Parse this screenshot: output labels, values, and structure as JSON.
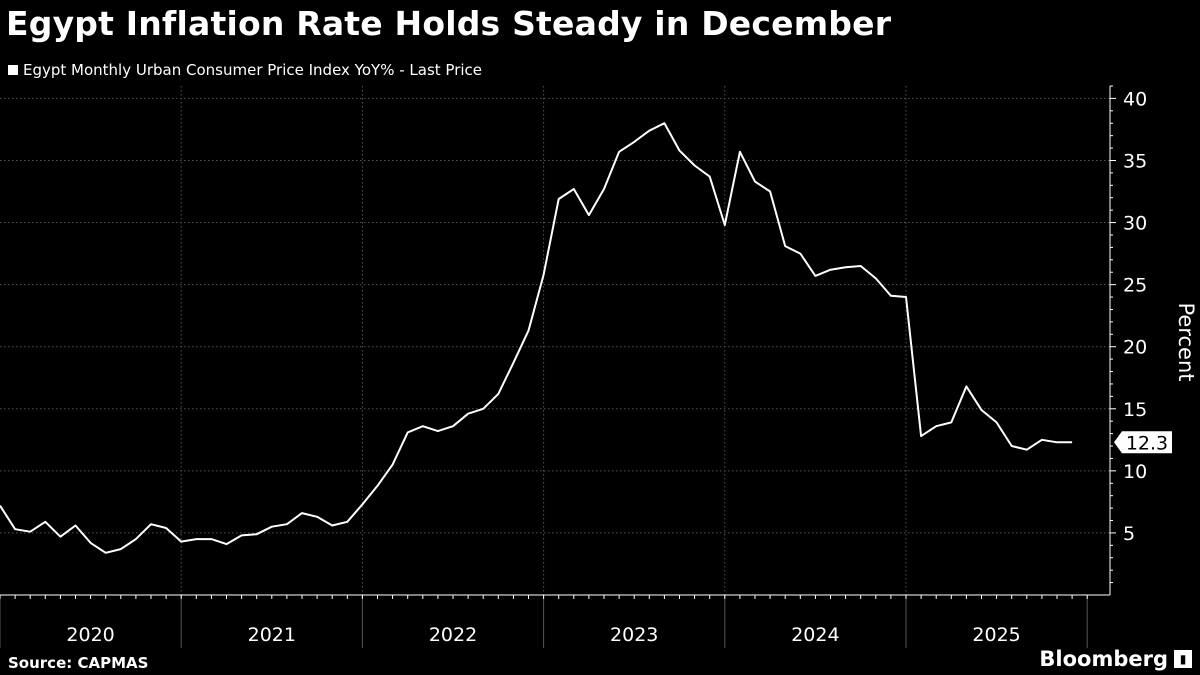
{
  "header": {
    "title": "Egypt Inflation Rate Holds Steady in December",
    "legend_label": "Egypt Monthly Urban Consumer Price Index YoY% - Last Price"
  },
  "footer": {
    "source": "Source: CAPMAS",
    "brand": "Bloomberg",
    "brand_icon": "bloomberg-logo-icon"
  },
  "colors": {
    "background": "#000000",
    "line": "#ffffff",
    "grid": "#555555"
  },
  "chart_data": {
    "type": "line",
    "title": "Egypt Inflation Rate Holds Steady in December",
    "xlabel": "",
    "ylabel": "Percent",
    "ylim": [
      0,
      41
    ],
    "yticks": [
      5,
      10,
      15,
      20,
      25,
      30,
      35,
      40
    ],
    "xlim": [
      0,
      72
    ],
    "year_labels": [
      "2020",
      "2021",
      "2022",
      "2023",
      "2024",
      "2025"
    ],
    "grid": true,
    "legend_position": "top-left",
    "last_value_label": "12.3",
    "series": [
      {
        "name": "Egypt Monthly Urban Consumer Price Index YoY% - Last Price",
        "x": [
          0,
          1,
          2,
          3,
          4,
          5,
          6,
          7,
          8,
          9,
          10,
          11,
          12,
          13,
          14,
          15,
          16,
          17,
          18,
          19,
          20,
          21,
          22,
          23,
          24,
          25,
          26,
          27,
          28,
          29,
          30,
          31,
          32,
          33,
          34,
          35,
          36,
          37,
          38,
          39,
          40,
          41,
          42,
          43,
          44,
          45,
          46,
          47,
          48,
          49,
          50,
          51,
          52,
          53,
          54,
          55,
          56,
          57,
          58,
          59,
          60,
          61,
          62,
          63,
          64,
          65,
          66,
          67,
          68,
          69,
          70,
          71
        ],
        "values": [
          7.2,
          5.3,
          5.1,
          5.9,
          4.7,
          5.6,
          4.2,
          3.4,
          3.7,
          4.5,
          5.7,
          5.4,
          4.3,
          4.5,
          4.5,
          4.1,
          4.8,
          4.9,
          5.5,
          5.7,
          6.6,
          6.3,
          5.6,
          5.9,
          7.3,
          8.8,
          10.5,
          13.1,
          13.6,
          13.2,
          13.6,
          14.6,
          15.0,
          16.2,
          18.7,
          21.3,
          25.8,
          31.9,
          32.7,
          30.6,
          32.7,
          35.7,
          36.5,
          37.4,
          38.0,
          35.8,
          34.6,
          33.7,
          29.8,
          35.7,
          33.3,
          32.5,
          28.1,
          27.5,
          25.7,
          26.2,
          26.4,
          26.5,
          25.5,
          24.1,
          24.0,
          12.8,
          13.6,
          13.9,
          16.8,
          14.9,
          13.9,
          12.0,
          11.7,
          12.5,
          12.3,
          12.3
        ]
      }
    ]
  }
}
